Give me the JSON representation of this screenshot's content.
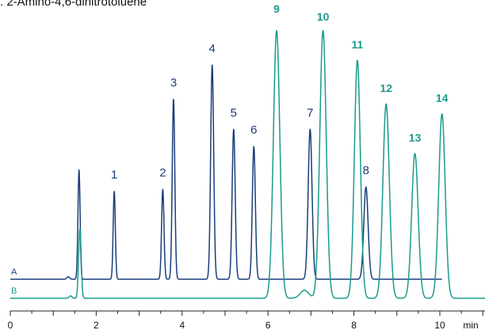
{
  "caption": ". 2-Amino-4,6-dinitrotoluene",
  "chart_data": {
    "type": "line",
    "x_unit": "min",
    "xlim": [
      0,
      11.2
    ],
    "ticks": [
      0,
      2,
      4,
      6,
      8,
      10
    ],
    "grid": false,
    "legend": "none",
    "series": [
      {
        "name": "A",
        "color": "#1a3e7a",
        "baseline": 0,
        "x_end": 10.05,
        "start_blip": 1.35,
        "peaks": [
          {
            "x": 1.6,
            "h": 0.51,
            "w": 0.025
          },
          {
            "x": 2.42,
            "h": 0.41,
            "w": 0.025
          },
          {
            "x": 3.55,
            "h": 0.42,
            "w": 0.028
          },
          {
            "x": 3.8,
            "h": 0.84,
            "w": 0.03
          },
          {
            "x": 4.7,
            "h": 1.0,
            "w": 0.035
          },
          {
            "x": 5.2,
            "h": 0.7,
            "w": 0.035
          },
          {
            "x": 5.67,
            "h": 0.62,
            "w": 0.035
          },
          {
            "x": 6.98,
            "h": 0.7,
            "w": 0.045
          },
          {
            "x": 8.28,
            "h": 0.43,
            "w": 0.05
          }
        ],
        "labels": [
          {
            "text": "1",
            "x": 2.42,
            "h": 0.47
          },
          {
            "text": "2",
            "x": 3.55,
            "h": 0.48
          },
          {
            "text": "3",
            "x": 3.8,
            "h": 0.9
          },
          {
            "text": "4",
            "x": 4.7,
            "h": 1.06
          },
          {
            "text": "5",
            "x": 5.2,
            "h": 0.76
          },
          {
            "text": "6",
            "x": 5.67,
            "h": 0.68
          },
          {
            "text": "7",
            "x": 6.98,
            "h": 0.76
          },
          {
            "text": "8",
            "x": 8.28,
            "h": 0.49
          }
        ]
      },
      {
        "name": "B",
        "color": "#1a9b8c",
        "baseline": 0,
        "x_end": 11.2,
        "start_blip": 1.4,
        "peaks": [
          {
            "x": 1.62,
            "h": 0.35,
            "w": 0.03
          },
          {
            "x": 6.2,
            "h": 1.35,
            "w": 0.075
          },
          {
            "x": 6.85,
            "h": 0.04,
            "w": 0.1
          },
          {
            "x": 7.28,
            "h": 1.35,
            "w": 0.075
          },
          {
            "x": 8.08,
            "h": 1.2,
            "w": 0.07
          },
          {
            "x": 8.75,
            "h": 0.98,
            "w": 0.075
          },
          {
            "x": 9.42,
            "h": 0.73,
            "w": 0.075
          },
          {
            "x": 10.05,
            "h": 0.93,
            "w": 0.075
          }
        ],
        "labels": [
          {
            "text": "9",
            "x": 6.2,
            "h": 1.44
          },
          {
            "text": "10",
            "x": 7.28,
            "h": 1.4
          },
          {
            "text": "11",
            "x": 8.08,
            "h": 1.26
          },
          {
            "text": "12",
            "x": 8.75,
            "h": 1.04
          },
          {
            "text": "13",
            "x": 9.42,
            "h": 0.79
          },
          {
            "text": "14",
            "x": 10.05,
            "h": 0.99
          }
        ]
      }
    ]
  }
}
